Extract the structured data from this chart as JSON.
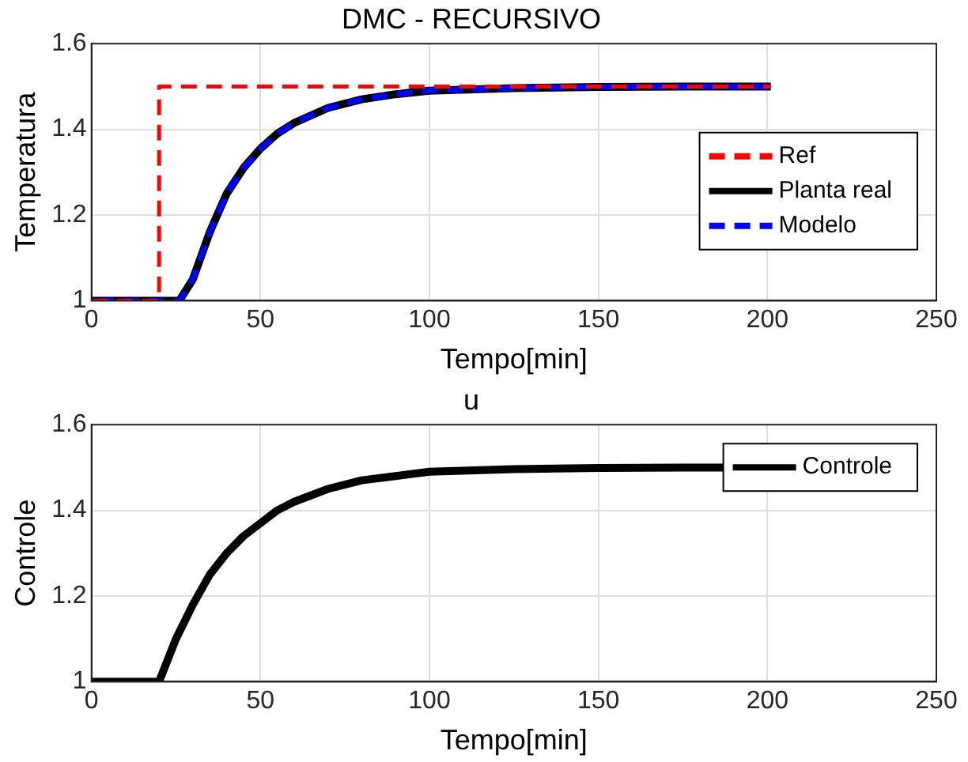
{
  "chart_data": [
    {
      "type": "line",
      "title": "DMC - RECURSIVO",
      "xlabel": "Tempo[min]",
      "ylabel": "Temperatura",
      "xlim": [
        0,
        250
      ],
      "xticks": [
        0,
        50,
        100,
        150,
        200,
        250
      ],
      "ylim": [
        1,
        1.6
      ],
      "yticks": [
        1,
        1.2,
        1.4,
        1.6
      ],
      "grid": true,
      "legend": "right",
      "marker": "none",
      "series": [
        {
          "name": "Ref",
          "color": "#ff0000",
          "line_style": "dashed",
          "x": [
            0,
            20,
            20,
            201
          ],
          "values": [
            1,
            1,
            1.5,
            1.5
          ]
        },
        {
          "name": "Planta real",
          "color": "#000000",
          "line_style": "solid",
          "x": [
            0,
            26,
            30,
            35,
            40,
            45,
            50,
            55,
            60,
            70,
            80,
            90,
            100,
            125,
            150,
            175,
            201
          ],
          "values": [
            1,
            1,
            1.05,
            1.16,
            1.25,
            1.31,
            1.355,
            1.39,
            1.415,
            1.45,
            1.47,
            1.482,
            1.49,
            1.496,
            1.499,
            1.5,
            1.5
          ]
        },
        {
          "name": "Modelo",
          "color": "#0000ff",
          "line_style": "dashed",
          "x": [
            0,
            26,
            30,
            35,
            40,
            45,
            50,
            55,
            60,
            70,
            80,
            90,
            100,
            125,
            150,
            175,
            201
          ],
          "values": [
            1,
            1,
            1.05,
            1.16,
            1.25,
            1.31,
            1.355,
            1.39,
            1.415,
            1.45,
            1.47,
            1.482,
            1.49,
            1.496,
            1.499,
            1.5,
            1.5
          ]
        }
      ]
    },
    {
      "type": "line",
      "title": "u",
      "xlabel": "Tempo[min]",
      "ylabel": "Controle",
      "xlim": [
        0,
        250
      ],
      "xticks": [
        0,
        50,
        100,
        150,
        200,
        250
      ],
      "ylim": [
        1,
        1.6
      ],
      "yticks": [
        1,
        1.2,
        1.4,
        1.6
      ],
      "grid": true,
      "legend": "top right",
      "marker": "none",
      "series": [
        {
          "name": "Controle",
          "color": "#000000",
          "line_style": "solid",
          "x": [
            0,
            20,
            25,
            30,
            35,
            40,
            45,
            50,
            55,
            60,
            70,
            80,
            90,
            100,
            125,
            150,
            175,
            201
          ],
          "values": [
            1,
            1,
            1.1,
            1.18,
            1.25,
            1.3,
            1.34,
            1.37,
            1.4,
            1.42,
            1.45,
            1.47,
            1.48,
            1.49,
            1.496,
            1.499,
            1.5,
            1.5
          ]
        }
      ]
    }
  ]
}
